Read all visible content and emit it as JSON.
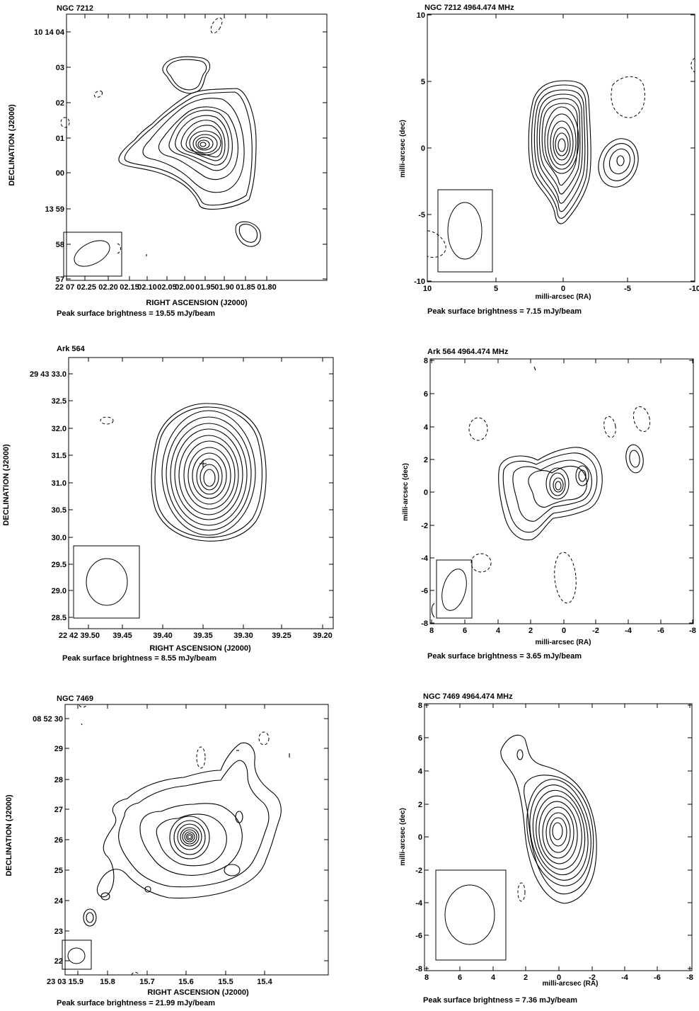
{
  "chart_data": [
    {
      "type": "contour",
      "title": "NGC 7212",
      "xlabel": "RIGHT ASCENSION (J2000)",
      "ylabel": "DECLINATION (J2000)",
      "x_ticks": [
        "22 07 02.25",
        "02.20",
        "02.15",
        "02.10",
        "02.05",
        "02.00",
        "01.95",
        "01.90",
        "01.85",
        "01.80"
      ],
      "y_ticks": [
        "10 14 04",
        "03",
        "02",
        "01",
        "00",
        "13 59",
        "58",
        "57"
      ],
      "peak": "Peak surface brightness =  19.55 mJy/beam",
      "contour_levels": 13
    },
    {
      "type": "contour",
      "title": "NGC 7212  4964.474 MHz",
      "xlabel": "milli-arcsec (RA)",
      "ylabel": "milli-arcsec (dec)",
      "x_ticks": [
        "10",
        "5",
        "0",
        "-5",
        "-10"
      ],
      "y_ticks": [
        "10",
        "5",
        "0",
        "-5",
        "-10"
      ],
      "xlim": [
        10,
        -10
      ],
      "ylim": [
        -10,
        10
      ],
      "peak": "Peak surface brightness =  7.15 mJy/beam",
      "contour_levels": 12
    },
    {
      "type": "contour",
      "title": "Ark 564",
      "xlabel": "RIGHT ASCENSION (J2000)",
      "ylabel": "DECLINATION (J2000)",
      "x_ticks": [
        "22 42 39.50",
        "39.45",
        "39.40",
        "39.35",
        "39.30",
        "39.25",
        "39.20"
      ],
      "y_ticks": [
        "29 43 33.0",
        "32.5",
        "32.0",
        "31.5",
        "31.0",
        "30.5",
        "30.0",
        "29.5",
        "29.0",
        "28.5"
      ],
      "peak": "Peak surface brightness =  8.55 mJy/beam",
      "contour_levels": 14
    },
    {
      "type": "contour",
      "title": "Ark 564  4964.474 MHz",
      "xlabel": "milli-arcsec (RA)",
      "ylabel": "milli-arcsec (dec)",
      "x_ticks": [
        "8",
        "6",
        "4",
        "2",
        "0",
        "-2",
        "-4",
        "-6",
        "-8"
      ],
      "y_ticks": [
        "8",
        "6",
        "4",
        "2",
        "0",
        "-2",
        "-4",
        "-6",
        "-8"
      ],
      "xlim": [
        8,
        -8
      ],
      "ylim": [
        -8,
        8
      ],
      "peak": "Peak surface brightness =  3.65 mJy/beam",
      "contour_levels": 6
    },
    {
      "type": "contour",
      "title": "NGC 7469",
      "xlabel": "RIGHT ASCENSION (J2000)",
      "ylabel": "DECLINATION (J2000)",
      "x_ticks": [
        "23 03 15.9",
        "15.8",
        "15.7",
        "15.6",
        "15.5",
        "15.4"
      ],
      "y_ticks": [
        "08 52 30",
        "29",
        "28",
        "27",
        "26",
        "25",
        "24",
        "23",
        "22"
      ],
      "peak": "Peak surface brightness =  21.99 mJy/beam",
      "contour_levels": 12
    },
    {
      "type": "contour",
      "title": "NGC 7469  4964.474 MHz",
      "xlabel": "milli-arcsec (RA)",
      "ylabel": "milli-arcsec (dec)",
      "x_ticks": [
        "8",
        "6",
        "4",
        "2",
        "0",
        "-2",
        "-4",
        "-6",
        "-8"
      ],
      "y_ticks": [
        "8",
        "6",
        "4",
        "2",
        "0",
        "-2",
        "-4",
        "-6",
        "-8"
      ],
      "xlim": [
        8,
        -8
      ],
      "ylim": [
        -8,
        8
      ],
      "peak": "Peak surface brightness =  7.36 mJy/beam",
      "contour_levels": 12
    }
  ]
}
